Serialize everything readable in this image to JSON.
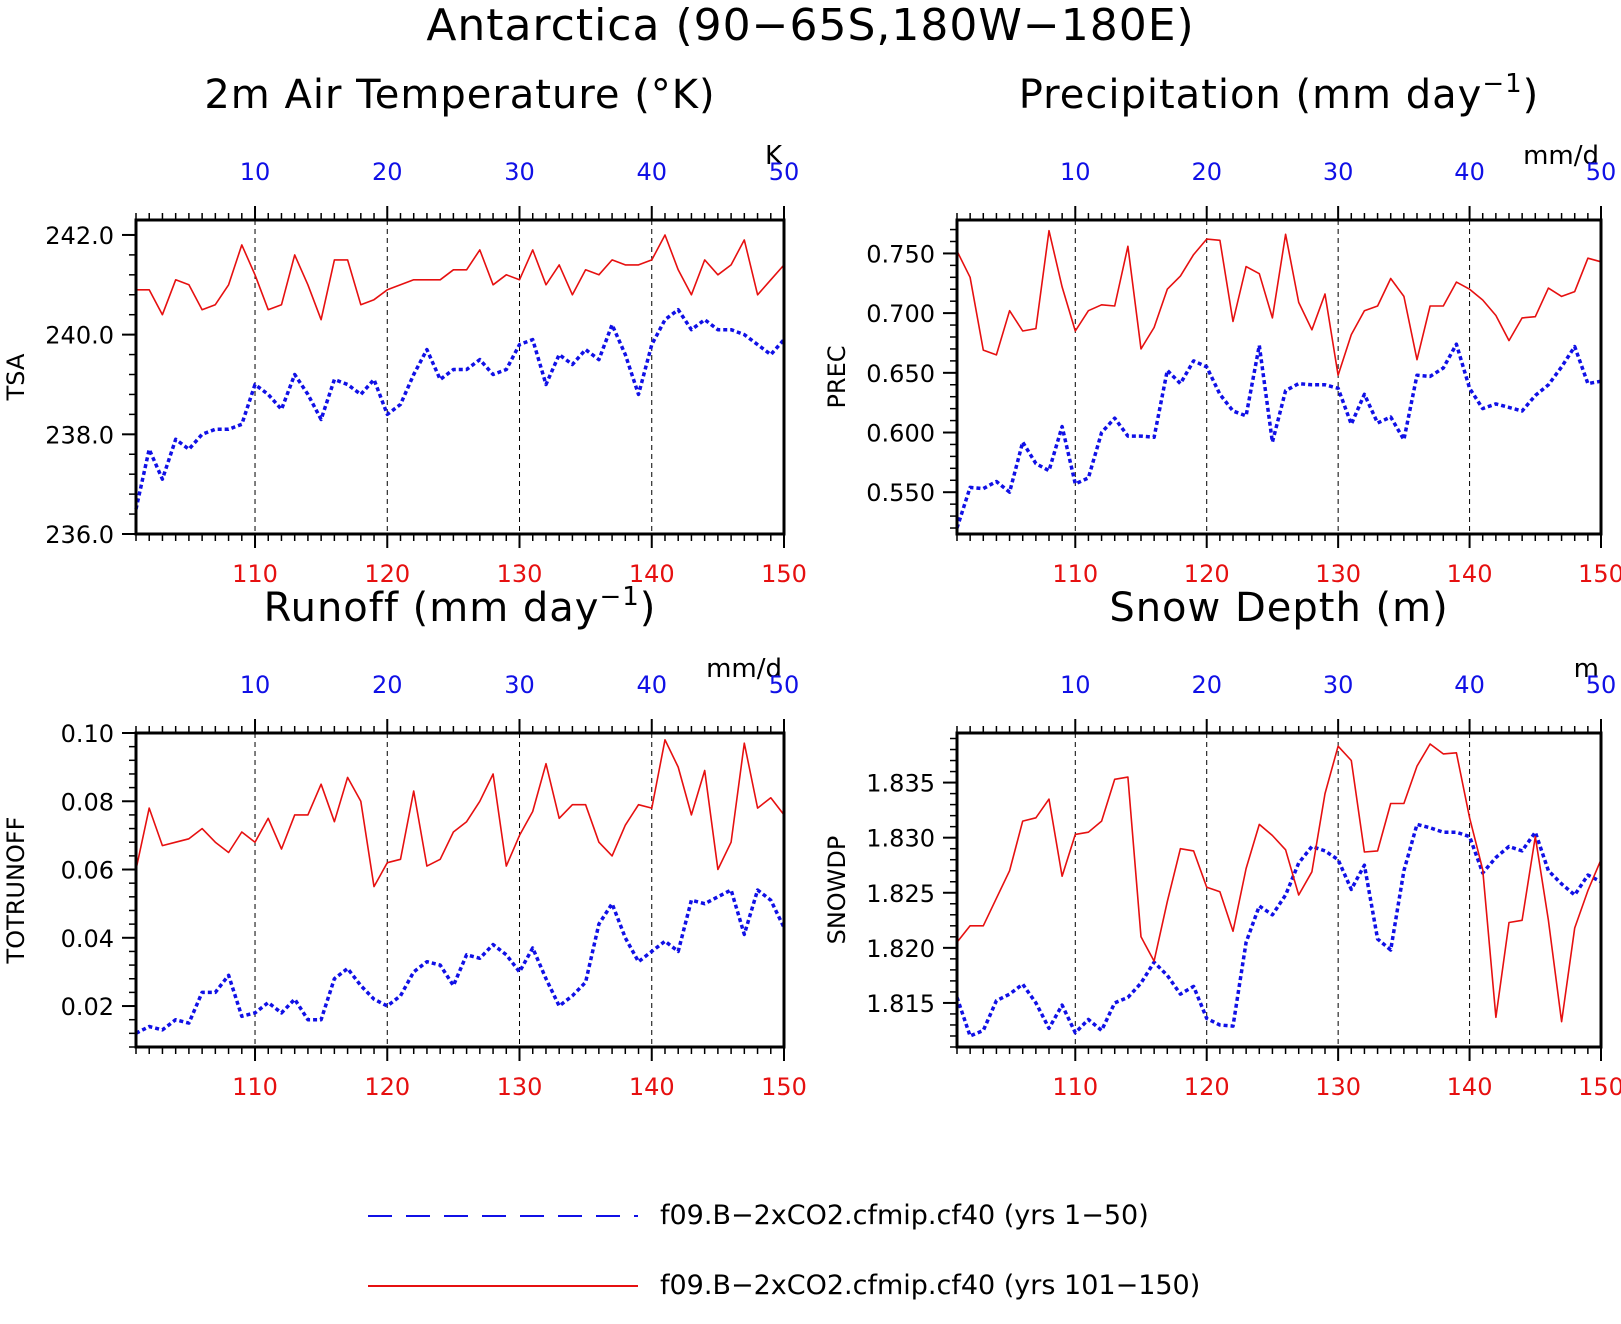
{
  "title": "Antarctica (90−65S,180W−180E)",
  "colors": {
    "series1": "#1010e6",
    "series2": "#e61010",
    "axis": "#000000"
  },
  "legend": [
    {
      "label": "f09.B−2xCO2.cfmip.cf40 (yrs 1−50)",
      "style": "dashed",
      "color": "#1010e6"
    },
    {
      "label": "f09.B−2xCO2.cfmip.cf40 (yrs 101−150)",
      "style": "solid",
      "color": "#e61010"
    }
  ],
  "chart_data": [
    {
      "id": "tsa",
      "type": "line",
      "title": "2m Air Temperature (°K)",
      "title_parts": {
        "base": "2m Air Temperature (°K)",
        "sup": ""
      },
      "ylabel": "TSA",
      "units_label": "K",
      "ylim": [
        236.0,
        242.3
      ],
      "yticks": [
        236.0,
        238.0,
        240.0,
        242.0
      ],
      "ytick_labels": [
        "236.0",
        "238.0",
        "240.0",
        "242.0"
      ],
      "top_xticks": [
        10,
        20,
        30,
        40,
        50
      ],
      "bottom_xticks": [
        110,
        120,
        130,
        140,
        150
      ],
      "x_top_range": [
        1,
        50
      ],
      "x_bottom_range": [
        101,
        150
      ],
      "series": [
        {
          "name": "f09.B−2xCO2.cfmip.cf40 (yrs 1−50)",
          "axis": "top",
          "style": "dashed",
          "values": [
            236.5,
            237.7,
            237.1,
            237.9,
            237.7,
            238.0,
            238.1,
            238.1,
            238.2,
            239.0,
            238.8,
            238.5,
            239.2,
            238.8,
            238.3,
            239.1,
            239.0,
            238.8,
            239.1,
            238.4,
            238.6,
            239.2,
            239.7,
            239.1,
            239.3,
            239.3,
            239.5,
            239.2,
            239.3,
            239.8,
            239.9,
            239.0,
            239.6,
            239.4,
            239.7,
            239.5,
            240.2,
            239.6,
            238.8,
            239.8,
            240.3,
            240.5,
            240.1,
            240.3,
            240.1,
            240.1,
            240.0,
            239.8,
            239.6,
            239.9
          ]
        },
        {
          "name": "f09.B−2xCO2.cfmip.cf40 (yrs 101−150)",
          "axis": "bottom",
          "style": "solid",
          "values": [
            240.9,
            240.9,
            240.4,
            241.1,
            241.0,
            240.5,
            240.6,
            241.0,
            241.8,
            241.2,
            240.5,
            240.6,
            241.6,
            241.0,
            240.3,
            241.5,
            241.5,
            240.6,
            240.7,
            240.9,
            241.0,
            241.1,
            241.1,
            241.1,
            241.3,
            241.3,
            241.7,
            241.0,
            241.2,
            241.1,
            241.7,
            241.0,
            241.4,
            240.8,
            241.3,
            241.2,
            241.5,
            241.4,
            241.4,
            241.5,
            242.0,
            241.3,
            240.8,
            241.5,
            241.2,
            241.4,
            241.9,
            240.8,
            241.1,
            241.4
          ]
        }
      ]
    },
    {
      "id": "prec",
      "type": "line",
      "title": "Precipitation (mm day⁻¹)",
      "title_parts": {
        "base": "Precipitation (mm day",
        "sup": "−1",
        "tail": ")"
      },
      "ylabel": "PREC",
      "units_label": "mm/d",
      "ylim": [
        0.515,
        0.778
      ],
      "yticks": [
        0.55,
        0.6,
        0.65,
        0.7,
        0.75
      ],
      "ytick_labels": [
        "0.550",
        "0.600",
        "0.650",
        "0.700",
        "0.750"
      ],
      "top_xticks": [
        10,
        20,
        30,
        40,
        50
      ],
      "bottom_xticks": [
        110,
        120,
        130,
        140,
        150
      ],
      "x_top_range": [
        1,
        50
      ],
      "x_bottom_range": [
        101,
        150
      ],
      "series": [
        {
          "name": "f09.B−2xCO2.cfmip.cf40 (yrs 1−50)",
          "axis": "top",
          "style": "dashed",
          "values": [
            0.52,
            0.554,
            0.553,
            0.559,
            0.55,
            0.592,
            0.574,
            0.568,
            0.605,
            0.557,
            0.562,
            0.6,
            0.612,
            0.597,
            0.597,
            0.596,
            0.652,
            0.641,
            0.66,
            0.655,
            0.632,
            0.618,
            0.614,
            0.673,
            0.592,
            0.635,
            0.641,
            0.64,
            0.64,
            0.637,
            0.607,
            0.632,
            0.608,
            0.613,
            0.594,
            0.648,
            0.647,
            0.654,
            0.674,
            0.637,
            0.62,
            0.624,
            0.621,
            0.618,
            0.631,
            0.64,
            0.655,
            0.672,
            0.641,
            0.643
          ]
        },
        {
          "name": "f09.B−2xCO2.cfmip.cf40 (yrs 101−150)",
          "axis": "bottom",
          "style": "solid",
          "values": [
            0.752,
            0.73,
            0.669,
            0.665,
            0.702,
            0.685,
            0.687,
            0.769,
            0.722,
            0.685,
            0.702,
            0.707,
            0.706,
            0.756,
            0.67,
            0.688,
            0.72,
            0.731,
            0.749,
            0.762,
            0.761,
            0.693,
            0.739,
            0.733,
            0.696,
            0.766,
            0.709,
            0.686,
            0.716,
            0.648,
            0.682,
            0.702,
            0.706,
            0.729,
            0.714,
            0.661,
            0.706,
            0.706,
            0.726,
            0.72,
            0.711,
            0.698,
            0.677,
            0.696,
            0.697,
            0.721,
            0.714,
            0.718,
            0.746,
            0.743
          ]
        }
      ]
    },
    {
      "id": "totrunoff",
      "type": "line",
      "title": "Runoff (mm day⁻¹)",
      "title_parts": {
        "base": "Runoff (mm day",
        "sup": "−1",
        "tail": ")"
      },
      "ylabel": "TOTRUNOFF",
      "units_label": "mm/d",
      "ylim": [
        0.008,
        0.1
      ],
      "yticks": [
        0.02,
        0.04,
        0.06,
        0.08,
        0.1
      ],
      "ytick_labels": [
        "0.02",
        "0.04",
        "0.06",
        "0.08",
        "0.10"
      ],
      "top_xticks": [
        10,
        20,
        30,
        40,
        50
      ],
      "bottom_xticks": [
        110,
        120,
        130,
        140,
        150
      ],
      "x_top_range": [
        1,
        50
      ],
      "x_bottom_range": [
        101,
        150
      ],
      "series": [
        {
          "name": "f09.B−2xCO2.cfmip.cf40 (yrs 1−50)",
          "axis": "top",
          "style": "dashed",
          "values": [
            0.012,
            0.014,
            0.013,
            0.016,
            0.015,
            0.024,
            0.024,
            0.029,
            0.017,
            0.018,
            0.021,
            0.018,
            0.022,
            0.016,
            0.016,
            0.028,
            0.031,
            0.026,
            0.022,
            0.02,
            0.023,
            0.03,
            0.033,
            0.032,
            0.026,
            0.035,
            0.034,
            0.038,
            0.035,
            0.03,
            0.037,
            0.028,
            0.02,
            0.023,
            0.027,
            0.044,
            0.05,
            0.04,
            0.033,
            0.036,
            0.039,
            0.036,
            0.051,
            0.05,
            0.052,
            0.054,
            0.041,
            0.054,
            0.051,
            0.043
          ]
        },
        {
          "name": "f09.B−2xCO2.cfmip.cf40 (yrs 101−150)",
          "axis": "bottom",
          "style": "solid",
          "values": [
            0.06,
            0.078,
            0.067,
            0.068,
            0.069,
            0.072,
            0.068,
            0.065,
            0.071,
            0.068,
            0.075,
            0.066,
            0.076,
            0.076,
            0.085,
            0.074,
            0.087,
            0.08,
            0.055,
            0.062,
            0.063,
            0.083,
            0.061,
            0.063,
            0.071,
            0.074,
            0.08,
            0.088,
            0.061,
            0.07,
            0.077,
            0.091,
            0.075,
            0.079,
            0.079,
            0.068,
            0.064,
            0.073,
            0.079,
            0.078,
            0.098,
            0.09,
            0.076,
            0.089,
            0.06,
            0.068,
            0.097,
            0.078,
            0.081,
            0.076
          ]
        }
      ]
    },
    {
      "id": "snowdp",
      "type": "line",
      "title": "Snow Depth (m)",
      "title_parts": {
        "base": "Snow Depth (m)",
        "sup": ""
      },
      "ylabel": "SNOWDP",
      "units_label": "m",
      "ylim": [
        1.811,
        1.8395
      ],
      "yticks": [
        1.815,
        1.82,
        1.825,
        1.83,
        1.835
      ],
      "ytick_labels": [
        "1.815",
        "1.820",
        "1.825",
        "1.830",
        "1.835"
      ],
      "top_xticks": [
        10,
        20,
        30,
        40,
        50
      ],
      "bottom_xticks": [
        110,
        120,
        130,
        140,
        150
      ],
      "x_top_range": [
        1,
        50
      ],
      "x_bottom_range": [
        101,
        150
      ],
      "series": [
        {
          "name": "f09.B−2xCO2.cfmip.cf40 (yrs 1−50)",
          "axis": "top",
          "style": "dashed",
          "values": [
            1.8155,
            1.812,
            1.8125,
            1.8152,
            1.8158,
            1.8167,
            1.815,
            1.8127,
            1.8148,
            1.8123,
            1.8135,
            1.8125,
            1.815,
            1.8155,
            1.8168,
            1.8187,
            1.8175,
            1.8158,
            1.8165,
            1.8136,
            1.813,
            1.8129,
            1.8205,
            1.8238,
            1.823,
            1.8248,
            1.8277,
            1.8292,
            1.8288,
            1.828,
            1.8253,
            1.8275,
            1.8208,
            1.8198,
            1.827,
            1.8312,
            1.8309,
            1.8305,
            1.8305,
            1.8301,
            1.8268,
            1.8282,
            1.8292,
            1.8288,
            1.8305,
            1.827,
            1.8258,
            1.8248,
            1.8266,
            1.826
          ]
        },
        {
          "name": "f09.B−2xCO2.cfmip.cf40 (yrs 101−150)",
          "axis": "bottom",
          "style": "solid",
          "values": [
            1.8205,
            1.822,
            1.822,
            1.8245,
            1.827,
            1.8315,
            1.8318,
            1.8335,
            1.8265,
            1.8303,
            1.8305,
            1.8315,
            1.8353,
            1.8355,
            1.821,
            1.8188,
            1.8242,
            1.829,
            1.8288,
            1.8255,
            1.8251,
            1.8215,
            1.8272,
            1.8312,
            1.8302,
            1.8289,
            1.8248,
            1.8269,
            1.834,
            1.8383,
            1.837,
            1.8287,
            1.8288,
            1.8331,
            1.8331,
            1.8365,
            1.8385,
            1.8376,
            1.8377,
            1.8318,
            1.8271,
            1.8137,
            1.8223,
            1.8225,
            1.8301,
            1.8225,
            1.8133,
            1.8218,
            1.8252,
            1.828
          ]
        }
      ]
    }
  ]
}
